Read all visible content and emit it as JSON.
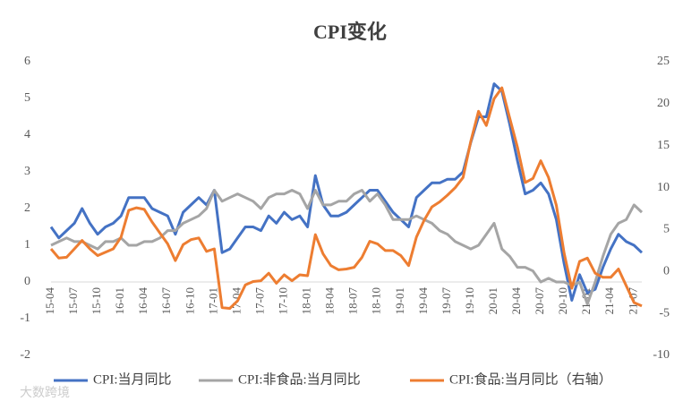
{
  "chart_data": {
    "type": "line",
    "title": "CPI变化",
    "watermark": "大数跨境",
    "categories": [
      "15-04",
      null,
      null,
      "15-07",
      null,
      null,
      "15-10",
      null,
      null,
      "16-01",
      null,
      null,
      "16-04",
      null,
      null,
      "16-07",
      null,
      null,
      "16-10",
      null,
      null,
      "17-01",
      null,
      null,
      "17-04",
      null,
      null,
      "17-07",
      null,
      null,
      "17-10",
      null,
      null,
      "18-01",
      null,
      null,
      "18-04",
      null,
      null,
      "18-07",
      null,
      null,
      "18-10",
      null,
      null,
      "19-01",
      null,
      null,
      "19-04",
      null,
      null,
      "19-07",
      null,
      null,
      "19-10",
      null,
      null,
      "20-01",
      null,
      null,
      "20-04",
      null,
      null,
      "20-07",
      null,
      null,
      "20-10",
      null,
      null,
      "21-01",
      null,
      null,
      "21-04",
      null,
      null,
      "21-07",
      null
    ],
    "series": [
      {
        "name": "CPI:当月同比",
        "color": "#4472c4",
        "values": [
          1.5,
          1.2,
          1.4,
          1.6,
          2.0,
          1.6,
          1.3,
          1.5,
          1.6,
          1.8,
          2.3,
          2.3,
          2.3,
          2.0,
          1.9,
          1.8,
          1.3,
          1.9,
          2.1,
          2.3,
          2.1,
          2.5,
          0.8,
          0.9,
          1.2,
          1.5,
          1.5,
          1.4,
          1.8,
          1.6,
          1.9,
          1.7,
          1.8,
          1.5,
          2.9,
          2.1,
          1.8,
          1.8,
          1.9,
          2.1,
          2.3,
          2.5,
          2.5,
          2.2,
          1.9,
          1.7,
          1.5,
          2.3,
          2.5,
          2.7,
          2.7,
          2.8,
          2.8,
          3.0,
          3.8,
          4.5,
          4.5,
          5.4,
          5.2,
          4.3,
          3.3,
          2.4,
          2.5,
          2.7,
          2.4,
          1.7,
          0.5,
          -0.5,
          0.2,
          -0.3,
          -0.2,
          0.4,
          0.9,
          1.3,
          1.1,
          1.0,
          0.8
        ]
      },
      {
        "name": "CPI:非食品:当月同比",
        "color": "#a5a5a5",
        "values": [
          1.0,
          1.1,
          1.2,
          1.1,
          1.1,
          1.0,
          0.9,
          1.1,
          1.1,
          1.2,
          1.0,
          1.0,
          1.1,
          1.1,
          1.2,
          1.4,
          1.4,
          1.6,
          1.7,
          1.8,
          2.0,
          2.5,
          2.2,
          2.3,
          2.4,
          2.3,
          2.2,
          2.0,
          2.3,
          2.4,
          2.4,
          2.5,
          2.4,
          2.0,
          2.5,
          2.1,
          2.1,
          2.2,
          2.2,
          2.4,
          2.5,
          2.2,
          2.4,
          2.1,
          1.7,
          1.7,
          1.7,
          1.8,
          1.7,
          1.6,
          1.4,
          1.3,
          1.1,
          1.0,
          0.9,
          1.0,
          1.3,
          1.6,
          0.9,
          0.7,
          0.4,
          0.4,
          0.3,
          0.0,
          0.1,
          0.0,
          0.0,
          -0.1,
          0.0,
          -0.6,
          0.0,
          0.7,
          1.3,
          1.6,
          1.7,
          2.1,
          1.9
        ]
      },
      {
        "name": "CPI:食品:当月同比（右轴）",
        "color": "#ed7d31",
        "axis": "y2",
        "values": [
          2.7,
          1.6,
          1.7,
          2.7,
          3.7,
          2.7,
          1.9,
          2.3,
          2.7,
          4.1,
          7.3,
          7.6,
          7.4,
          5.9,
          4.6,
          3.3,
          1.3,
          3.2,
          3.8,
          4.0,
          2.4,
          2.7,
          -4.3,
          -4.4,
          -3.5,
          -1.6,
          -1.2,
          -1.1,
          -0.2,
          -1.4,
          -0.4,
          -1.1,
          -0.4,
          -0.5,
          4.4,
          2.1,
          0.7,
          0.2,
          0.3,
          0.5,
          1.7,
          3.6,
          3.3,
          2.5,
          2.5,
          1.9,
          0.7,
          4.1,
          6.1,
          7.7,
          8.3,
          9.1,
          10.0,
          11.2,
          15.5,
          19.1,
          17.4,
          20.6,
          21.9,
          18.3,
          14.8,
          10.6,
          11.1,
          13.2,
          11.2,
          7.9,
          2.2,
          -2.0,
          1.2,
          1.6,
          -0.2,
          -0.7,
          -0.7,
          0.3,
          -1.7,
          -3.7,
          -4.1
        ]
      }
    ],
    "ylim": [
      -2,
      6
    ],
    "yticks": [
      -2,
      -1,
      0,
      1,
      2,
      3,
      4,
      5,
      6
    ],
    "y2lim": [
      -10,
      25
    ],
    "y2ticks": [
      -10,
      -5,
      0,
      5,
      10,
      15,
      20,
      25
    ],
    "legend": "bottom"
  }
}
